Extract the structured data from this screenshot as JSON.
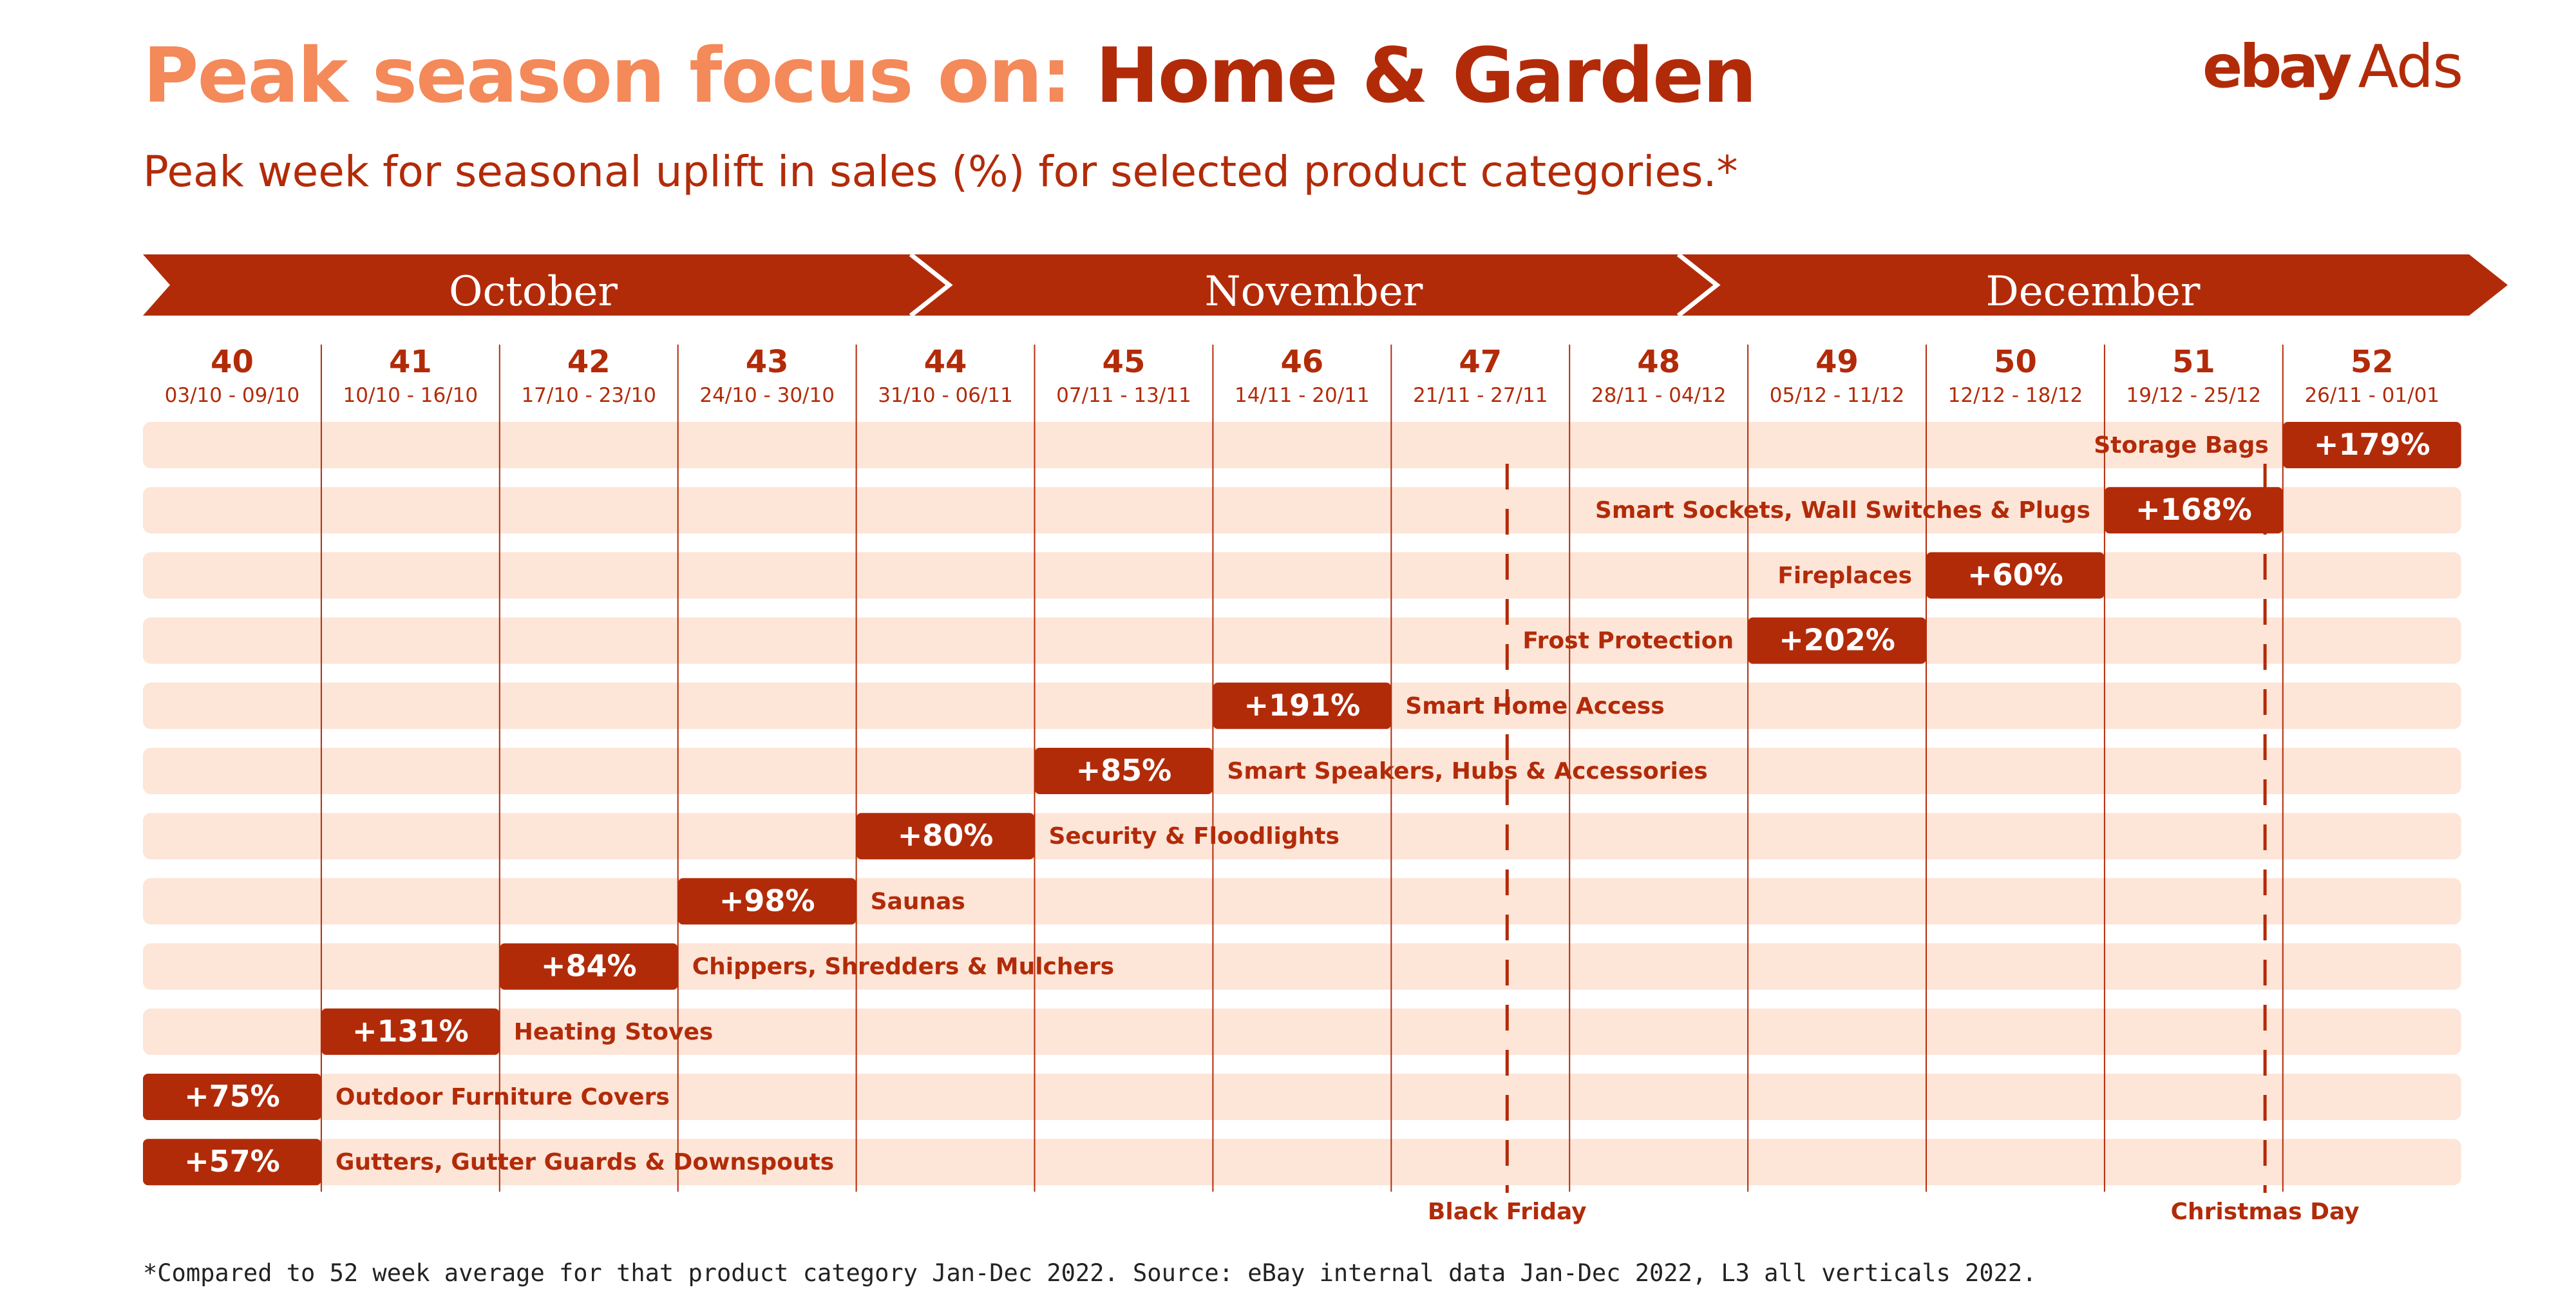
{
  "header": {
    "title_prefix": "Peak season focus on: ",
    "title_main": "Home & Garden",
    "subtitle": "Peak week for seasonal uplift in sales (%) for selected product categories.*",
    "logo_brand": "ebay",
    "logo_suffix": "Ads"
  },
  "colors": {
    "accent": "#b22b09",
    "accent_light": "#f4895a",
    "row_bg": "#fde5d8",
    "text_dark": "#222222"
  },
  "chart_data": {
    "type": "table",
    "months": [
      {
        "name": "October",
        "first_week": 40,
        "last_week": 43
      },
      {
        "name": "November",
        "first_week": 44,
        "last_week": 48
      },
      {
        "name": "December",
        "first_week": 48,
        "last_week": 52
      }
    ],
    "weeks": [
      {
        "week": 40,
        "range": "03/10 - 09/10"
      },
      {
        "week": 41,
        "range": "10/10 - 16/10"
      },
      {
        "week": 42,
        "range": "17/10 - 23/10"
      },
      {
        "week": 43,
        "range": "24/10 - 30/10"
      },
      {
        "week": 44,
        "range": "31/10 - 06/11"
      },
      {
        "week": 45,
        "range": "07/11 - 13/11"
      },
      {
        "week": 46,
        "range": "14/11 - 20/11"
      },
      {
        "week": 47,
        "range": "21/11 - 27/11"
      },
      {
        "week": 48,
        "range": "28/11 - 04/12"
      },
      {
        "week": 49,
        "range": "05/12 - 11/12"
      },
      {
        "week": 50,
        "range": "12/12 - 18/12"
      },
      {
        "week": 51,
        "range": "19/12 - 25/12"
      },
      {
        "week": 52,
        "range": "26/11 - 01/01"
      }
    ],
    "rows": [
      {
        "category": "Storage Bags",
        "peak_week": 52,
        "uplift": "+179%",
        "uplift_pct": 179,
        "label_side": "left"
      },
      {
        "category": "Smart Sockets, Wall Switches & Plugs",
        "peak_week": 51,
        "uplift": "+168%",
        "uplift_pct": 168,
        "label_side": "left"
      },
      {
        "category": "Fireplaces",
        "peak_week": 50,
        "uplift": "+60%",
        "uplift_pct": 60,
        "label_side": "left"
      },
      {
        "category": "Frost Protection",
        "peak_week": 49,
        "uplift": "+202%",
        "uplift_pct": 202,
        "label_side": "left"
      },
      {
        "category": "Smart Home Access",
        "peak_week": 46,
        "uplift": "+191%",
        "uplift_pct": 191,
        "label_side": "right"
      },
      {
        "category": "Smart Speakers, Hubs & Accessories",
        "peak_week": 45,
        "uplift": "+85%",
        "uplift_pct": 85,
        "label_side": "right"
      },
      {
        "category": "Security & Floodlights",
        "peak_week": 44,
        "uplift": "+80%",
        "uplift_pct": 80,
        "label_side": "right"
      },
      {
        "category": "Saunas",
        "peak_week": 43,
        "uplift": "+98%",
        "uplift_pct": 98,
        "label_side": "right"
      },
      {
        "category": "Chippers, Shredders & Mulchers",
        "peak_week": 42,
        "uplift": "+84%",
        "uplift_pct": 84,
        "label_side": "right"
      },
      {
        "category": "Heating Stoves",
        "peak_week": 41,
        "uplift": "+131%",
        "uplift_pct": 131,
        "label_side": "right"
      },
      {
        "category": "Outdoor Furniture Covers",
        "peak_week": 40,
        "uplift": "+75%",
        "uplift_pct": 75,
        "label_side": "right"
      },
      {
        "category": "Gutters, Gutter Guards & Downspouts",
        "peak_week": 40,
        "uplift": "+57%",
        "uplift_pct": 57,
        "label_side": "right"
      }
    ],
    "markers": [
      {
        "label": "Black Friday",
        "week": 47,
        "position_in_week": 0.65
      },
      {
        "label": "Christmas Day",
        "week": 51,
        "position_in_week": 0.9
      }
    ]
  },
  "footnote": "*Compared to 52 week average for that product category Jan-Dec 2022. Source: eBay internal data Jan-Dec 2022, L3 all verticals 2022."
}
